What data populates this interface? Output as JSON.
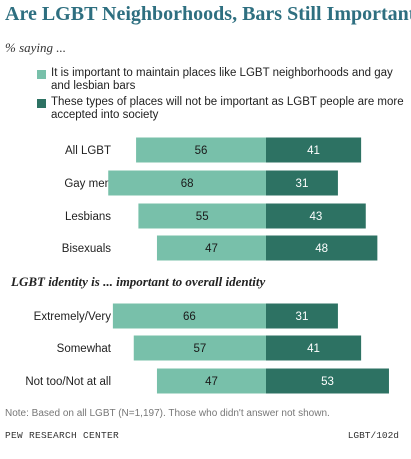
{
  "colors": {
    "important": "#78c0aa",
    "not_important": "#2d7263",
    "title": "#2e6f80"
  },
  "chart_data": {
    "type": "bar",
    "orientation": "horizontal",
    "stacked": "diverging",
    "title": "Are LGBT Neighborhoods, Bars Still Important?",
    "subtitle": "% saying ...",
    "series": [
      {
        "name": "It is important to maintain places like LGBT neighborhoods and gay and lesbian bars"
      },
      {
        "name": "These types of places will not be important as LGBT people are more accepted into society"
      }
    ],
    "groups": [
      {
        "heading": "",
        "rows": [
          {
            "label": "All LGBT",
            "values": [
              56,
              41
            ]
          },
          {
            "label": "Gay men",
            "values": [
              68,
              31
            ]
          },
          {
            "label": "Lesbians",
            "values": [
              55,
              43
            ]
          },
          {
            "label": "Bisexuals",
            "values": [
              47,
              48
            ]
          }
        ]
      },
      {
        "heading": "LGBT identity is ... important to overall identity",
        "rows": [
          {
            "label": "Extremely/Very",
            "values": [
              66,
              31
            ]
          },
          {
            "label": "Somewhat",
            "values": [
              57,
              41
            ]
          },
          {
            "label": "Not too/Not at all",
            "values": [
              47,
              53
            ]
          }
        ]
      }
    ],
    "note": "Note: Based on all LGBT (N=1,197). Those who didn't answer not shown.",
    "source": "PEW RESEARCH CENTER",
    "code": "LGBT/102d"
  }
}
